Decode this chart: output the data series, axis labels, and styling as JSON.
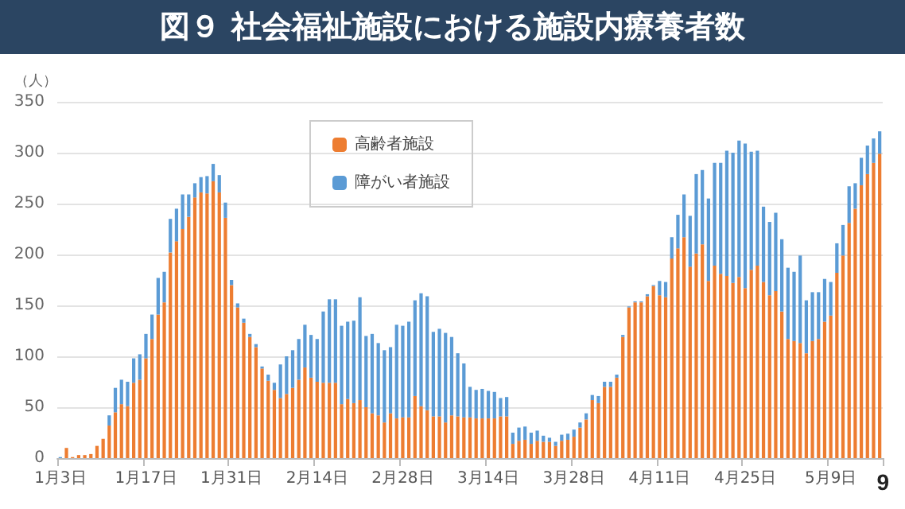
{
  "chart_data": {
    "type": "bar",
    "title": "図９ 社会福祉施設における施設内療養者数",
    "ylabel": "（人）",
    "annotations": [
      "9"
    ],
    "stacked": true,
    "grid": "y",
    "legend": "top left",
    "ylim": [
      0,
      350
    ],
    "yticks": [
      0,
      50,
      100,
      150,
      200,
      250,
      300,
      350
    ],
    "categories": [
      "1月3日",
      null,
      null,
      null,
      null,
      null,
      null,
      null,
      null,
      null,
      null,
      null,
      null,
      null,
      "1月17日",
      null,
      null,
      null,
      null,
      null,
      null,
      null,
      null,
      null,
      null,
      null,
      null,
      null,
      "1月31日",
      null,
      null,
      null,
      null,
      null,
      null,
      null,
      null,
      null,
      null,
      null,
      null,
      null,
      "2月14日",
      null,
      null,
      null,
      null,
      null,
      null,
      null,
      null,
      null,
      null,
      null,
      null,
      null,
      "2月28日",
      null,
      null,
      null,
      null,
      null,
      null,
      null,
      null,
      null,
      null,
      null,
      null,
      null,
      "3月14日",
      null,
      null,
      null,
      null,
      null,
      null,
      null,
      null,
      null,
      null,
      null,
      null,
      null,
      "3月28日",
      null,
      null,
      null,
      null,
      null,
      null,
      null,
      null,
      null,
      null,
      null,
      null,
      null,
      "4月11日",
      null,
      null,
      null,
      null,
      null,
      null,
      null,
      null,
      null,
      null,
      null,
      null,
      null,
      "4月25日",
      null,
      null,
      null,
      null,
      null,
      null,
      null,
      null,
      null,
      null,
      null,
      null,
      null,
      "5月9日",
      null,
      null,
      null,
      null,
      null,
      null,
      null,
      null
    ],
    "series": [
      {
        "name": "高齢者施設",
        "color": "#ed7d31",
        "values": [
          0,
          10,
          1,
          3,
          3,
          4,
          12,
          19,
          32,
          45,
          53,
          51,
          74,
          77,
          98,
          117,
          141,
          153,
          202,
          213,
          225,
          237,
          256,
          261,
          260,
          272,
          261,
          236,
          170,
          148,
          133,
          119,
          109,
          88,
          76,
          67,
          59,
          63,
          69,
          77,
          89,
          79,
          75,
          74,
          74,
          74,
          53,
          58,
          54,
          57,
          50,
          44,
          42,
          35,
          44,
          39,
          40,
          40,
          61,
          51,
          47,
          41,
          41,
          35,
          42,
          41,
          40,
          40,
          39,
          39,
          39,
          39,
          41,
          41,
          14,
          17,
          18,
          14,
          17,
          16,
          16,
          12,
          17,
          18,
          21,
          30,
          38,
          57,
          54,
          70,
          70,
          79,
          119,
          148,
          153,
          153,
          159,
          169,
          160,
          158,
          196,
          206,
          217,
          188,
          201,
          210,
          174,
          189,
          181,
          179,
          172,
          178,
          167,
          185,
          189,
          173,
          160,
          164,
          144,
          117,
          115,
          113,
          103,
          115,
          117,
          134,
          140,
          182,
          199,
          231,
          245,
          268,
          279,
          290,
          299
        ]
      },
      {
        "name": "障がい者施設",
        "color": "#5b9bd5",
        "values": [
          1,
          0,
          0,
          0,
          0,
          0,
          0,
          0,
          10,
          24,
          24,
          24,
          24,
          25,
          24,
          24,
          36,
          30,
          33,
          32,
          34,
          22,
          14,
          15,
          17,
          17,
          17,
          15,
          5,
          4,
          4,
          3,
          3,
          2,
          6,
          7,
          33,
          37,
          37,
          40,
          42,
          42,
          42,
          70,
          82,
          82,
          77,
          76,
          81,
          101,
          70,
          78,
          71,
          71,
          65,
          92,
          90,
          94,
          94,
          111,
          112,
          83,
          86,
          88,
          77,
          62,
          53,
          30,
          28,
          29,
          27,
          26,
          18,
          19,
          11,
          13,
          13,
          11,
          10,
          6,
          4,
          4,
          6,
          6,
          7,
          5,
          6,
          5,
          7,
          5,
          5,
          3,
          2,
          1,
          1,
          1,
          2,
          1,
          14,
          15,
          21,
          33,
          42,
          50,
          78,
          73,
          81,
          101,
          109,
          123,
          128,
          134,
          142,
          116,
          113,
          74,
          72,
          77,
          71,
          70,
          68,
          86,
          52,
          48,
          46,
          42,
          33,
          29,
          30,
          36,
          25,
          27,
          28,
          24,
          22
        ]
      }
    ]
  }
}
